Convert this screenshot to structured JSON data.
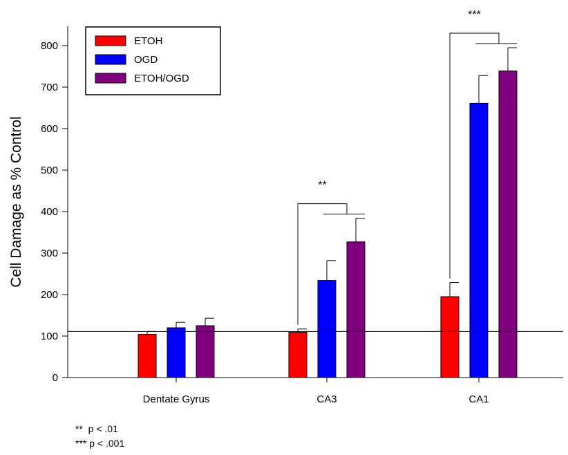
{
  "chart_data": {
    "type": "bar",
    "title": "",
    "xlabel": "",
    "ylabel": "Cell Damage as % Control",
    "ylim": [
      0,
      850
    ],
    "yticks": [
      0,
      100,
      200,
      300,
      400,
      500,
      600,
      700,
      800
    ],
    "categories": [
      "Dentate Gyrus",
      "CA3",
      "CA1"
    ],
    "series": [
      {
        "name": "ETOH",
        "color": "#ff0000",
        "values": [
          104,
          109,
          195
        ],
        "errors": [
          7,
          8,
          34
        ]
      },
      {
        "name": "OGD",
        "color": "#0000ff",
        "values": [
          120,
          234,
          661
        ],
        "errors": [
          13,
          48,
          67
        ]
      },
      {
        "name": "ETOH/OGD",
        "color": "#800080",
        "values": [
          125,
          327,
          739
        ],
        "errors": [
          18,
          57,
          56
        ]
      }
    ],
    "reference_line": 111,
    "legend_position": "top-left",
    "annotations": [
      {
        "category": "CA3",
        "label": "**"
      },
      {
        "category": "CA1",
        "label": "***"
      }
    ]
  },
  "footnotes": {
    "line1": "**  p < .01",
    "line2": "*** p < .001"
  }
}
